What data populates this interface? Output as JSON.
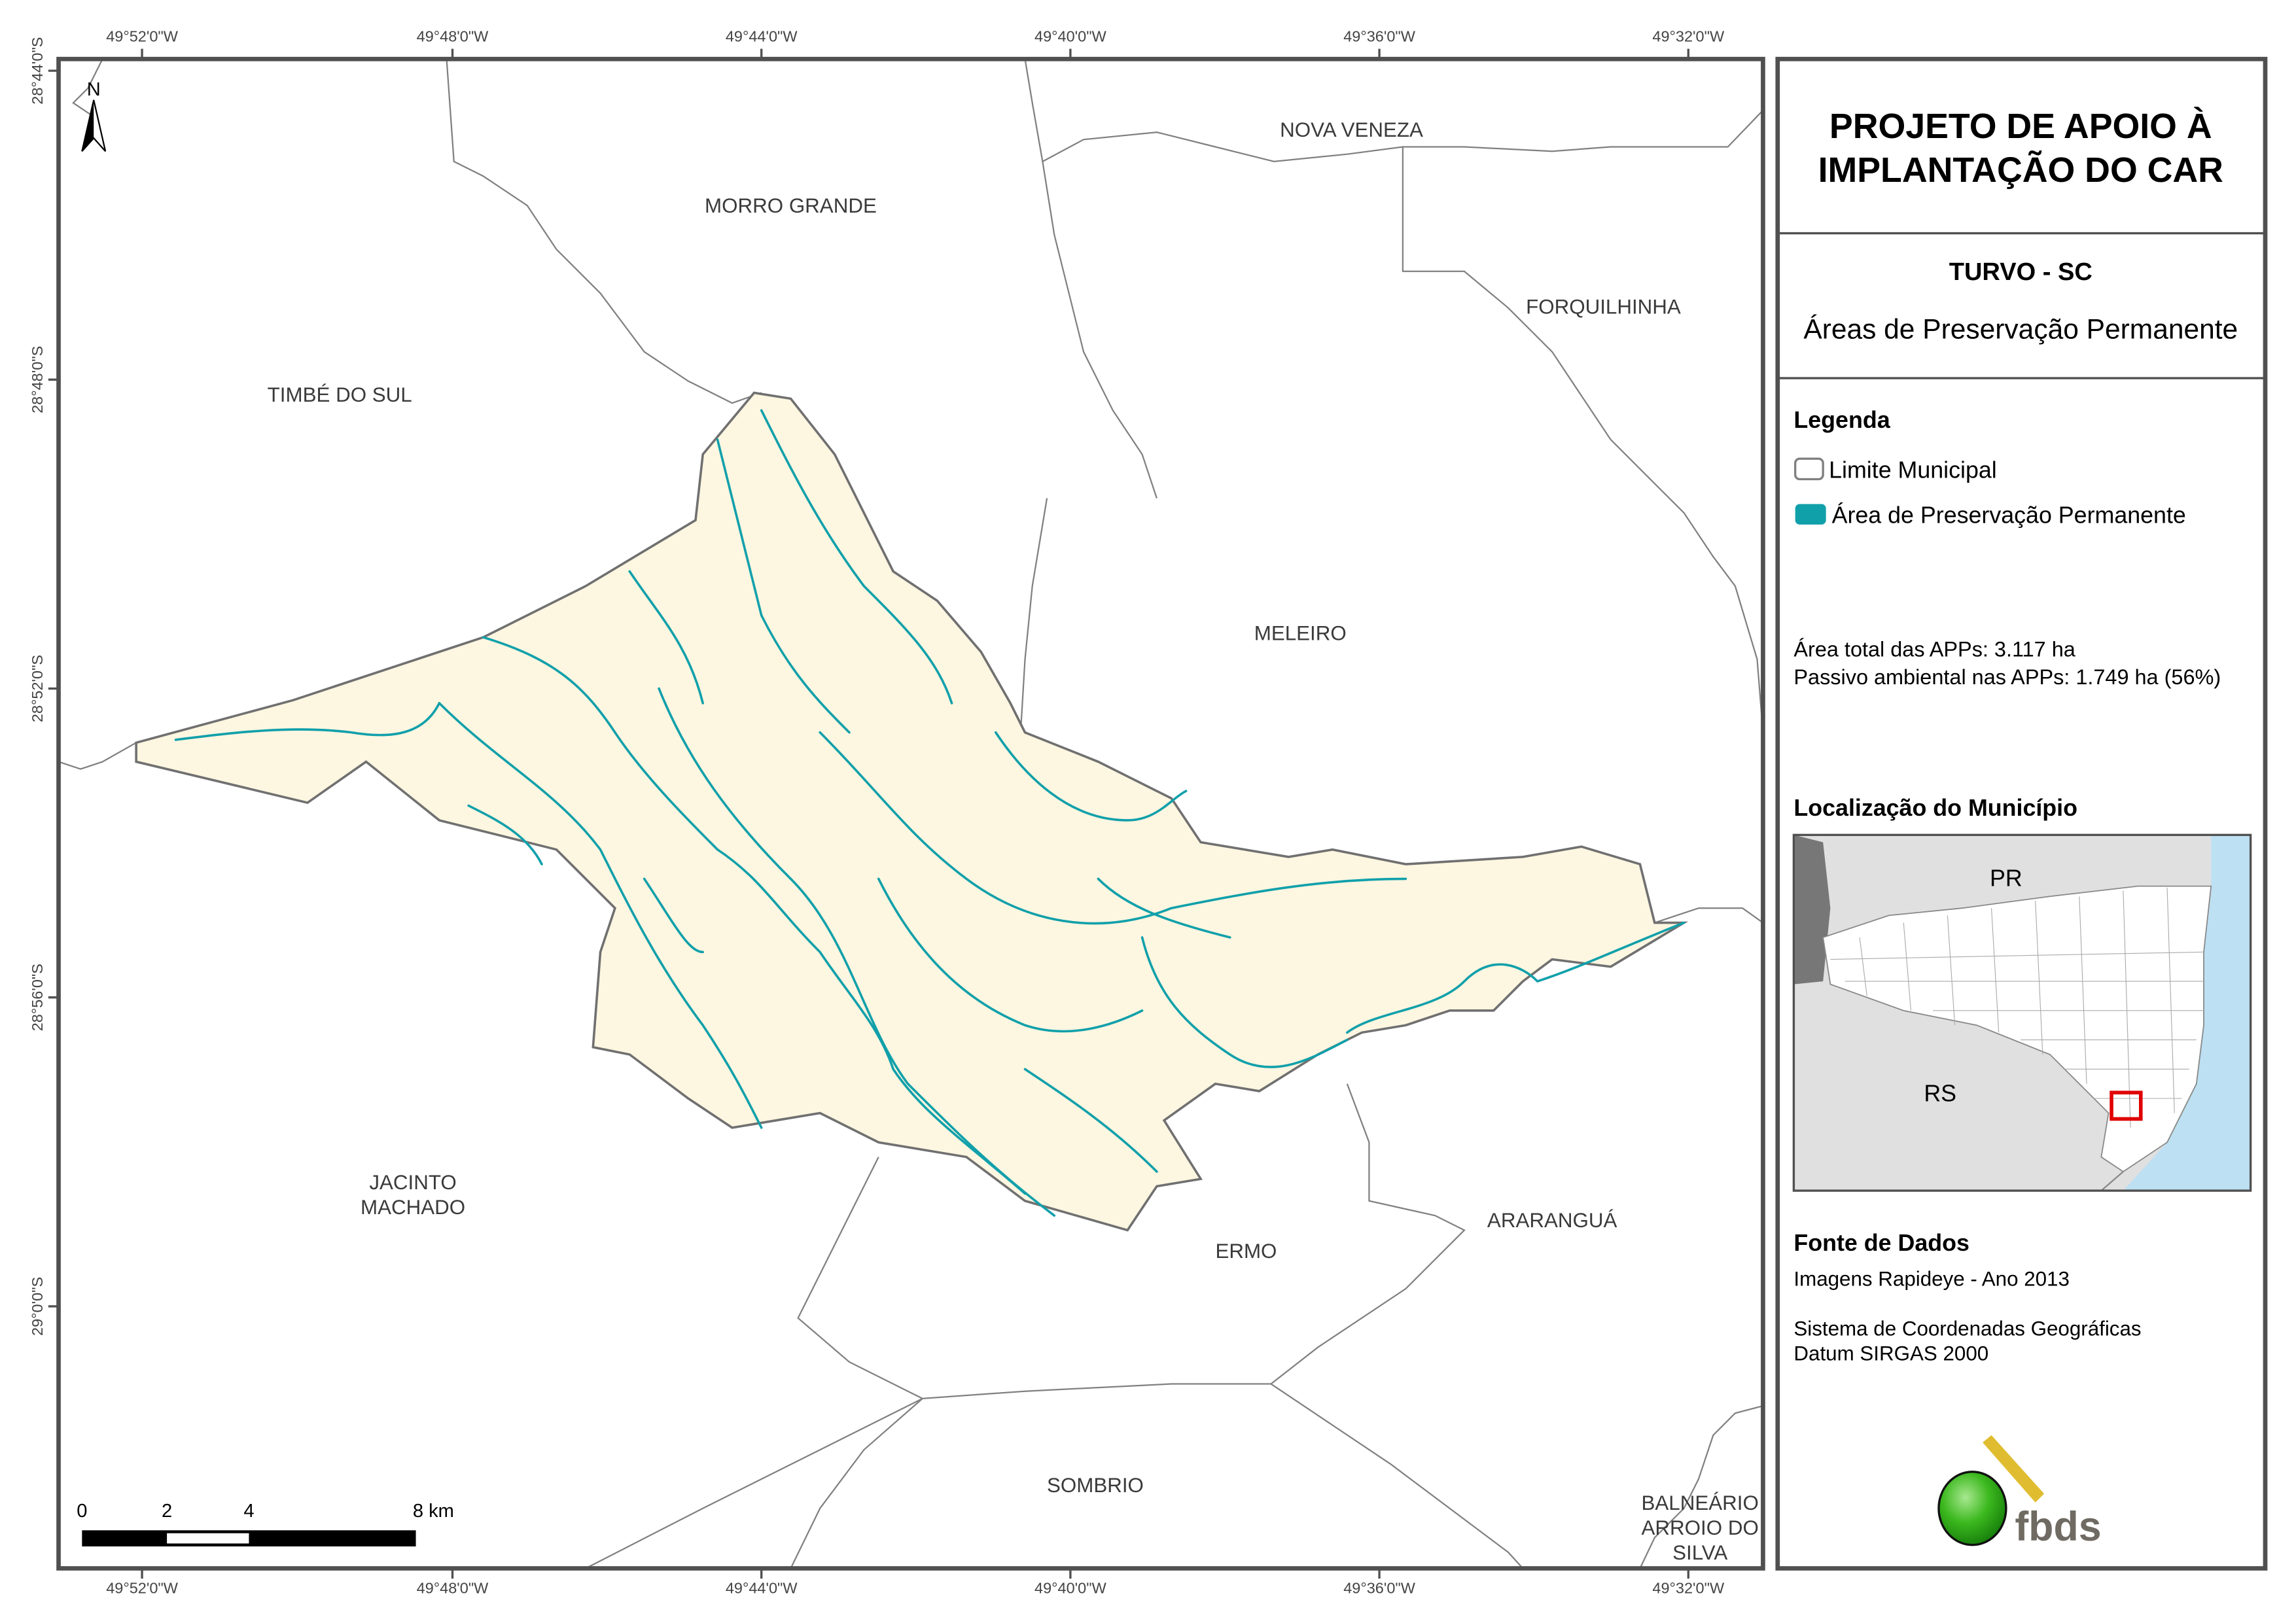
{
  "colors": {
    "app_fill": "#fdf6e1",
    "app_stroke": "#10a0aa",
    "boundary": "#808080",
    "frame": "#505050",
    "highlight": "#e00000",
    "ocean": "#bde0f2"
  },
  "coords": {
    "top": [
      "49°52'0\"W",
      "49°48'0\"W",
      "49°44'0\"W",
      "49°40'0\"W",
      "49°36'0\"W",
      "49°32'0\"W"
    ],
    "bottom": [
      "49°52'0\"W",
      "49°48'0\"W",
      "49°44'0\"W",
      "49°40'0\"W",
      "49°36'0\"W",
      "49°32'0\"W"
    ],
    "left": [
      "28°44'0\"S",
      "28°48'0\"S",
      "28°52'0\"S",
      "28°56'0\"S",
      "29°0'0\"S"
    ]
  },
  "map": {
    "north_label": "N",
    "municipalities": {
      "nova_veneza": "NOVA VENEZA",
      "morro_grande": "MORRO GRANDE",
      "forquilhinha": "FORQUILHINHA",
      "timbe_do_sul": "TIMBÉ DO SUL",
      "meleiro": "MELEIRO",
      "jacinto_machado": [
        "JACINTO",
        "MACHADO"
      ],
      "ermo": "ERMO",
      "ararangua": "ARARANGUÁ",
      "sombrio": "SOMBRIO",
      "balneario": [
        "BALNEÁRIO",
        "ARROIO DO",
        "SILVA"
      ]
    },
    "scale": {
      "labels": [
        "0",
        "2",
        "4",
        "8 km"
      ]
    }
  },
  "panel": {
    "title": [
      "PROJETO DE APOIO À",
      "IMPLANTAÇÃO DO CAR"
    ],
    "municipality": "TURVO - SC",
    "subtitle": "Áreas de Preservação Permanente",
    "legend_heading": "Legenda",
    "legend": [
      {
        "label": "Limite Municipal",
        "icon": "outline-square-icon"
      },
      {
        "label": "Área de Preservação Permanente",
        "icon": "teal-square-icon"
      }
    ],
    "stats": [
      "Área total das APPs: 3.117 ha",
      "Passivo ambiental nas APPs: 1.749 ha (56%)"
    ],
    "location_heading": "Localização do Município",
    "inset_labels": {
      "pr": "PR",
      "rs": "RS"
    },
    "source_heading": "Fonte de Dados",
    "source_lines": [
      "Imagens Rapideye - Ano 2013",
      "Sistema de Coordenadas Geográficas",
      "Datum SIRGAS 2000"
    ],
    "logo_text": "fbds"
  }
}
